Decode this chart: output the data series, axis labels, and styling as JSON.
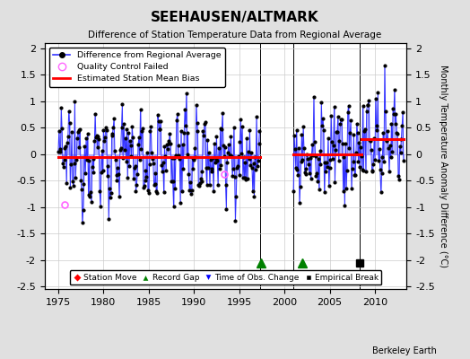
{
  "title": "SEEHAUSEN/ALTMARK",
  "subtitle": "Difference of Station Temperature Data from Regional Average",
  "ylabel": "Monthly Temperature Anomaly Difference (°C)",
  "xlim": [
    1973.5,
    2013.5
  ],
  "ylim": [
    -2.55,
    2.1
  ],
  "yticks": [
    -2.5,
    -2,
    -1.5,
    -1,
    -0.5,
    0,
    0.5,
    1,
    1.5,
    2
  ],
  "xticks": [
    1975,
    1980,
    1985,
    1990,
    1995,
    2000,
    2005,
    2010
  ],
  "segment1_start": 1975.0,
  "segment1_end": 1997.3,
  "segment1_bias": -0.05,
  "segment2a_start": 2001.0,
  "segment2a_end": 2008.5,
  "segment2a_bias": 0.0,
  "segment2b_start": 2008.5,
  "segment2b_end": 2013.2,
  "segment2b_bias": 0.28,
  "gap_start": 1997.3,
  "gap_end": 2001.0,
  "qc1_x": 1975.7,
  "qc1_y": -0.95,
  "qc2_x": 1993.3,
  "qc2_y": -0.38,
  "record_gap_x1": 1997.4,
  "record_gap_x2": 2002.0,
  "empirical_break_x": 2008.3,
  "marker_y": -2.05,
  "background_color": "#e0e0e0",
  "plot_bg_color": "#ffffff",
  "line_color": "#3333ff",
  "line_fill_color": "#9999ff",
  "bias_line_color": "#ff0000",
  "qc_color": "#ff66ff",
  "watermark": "Berkeley Earth",
  "seed": 12345
}
